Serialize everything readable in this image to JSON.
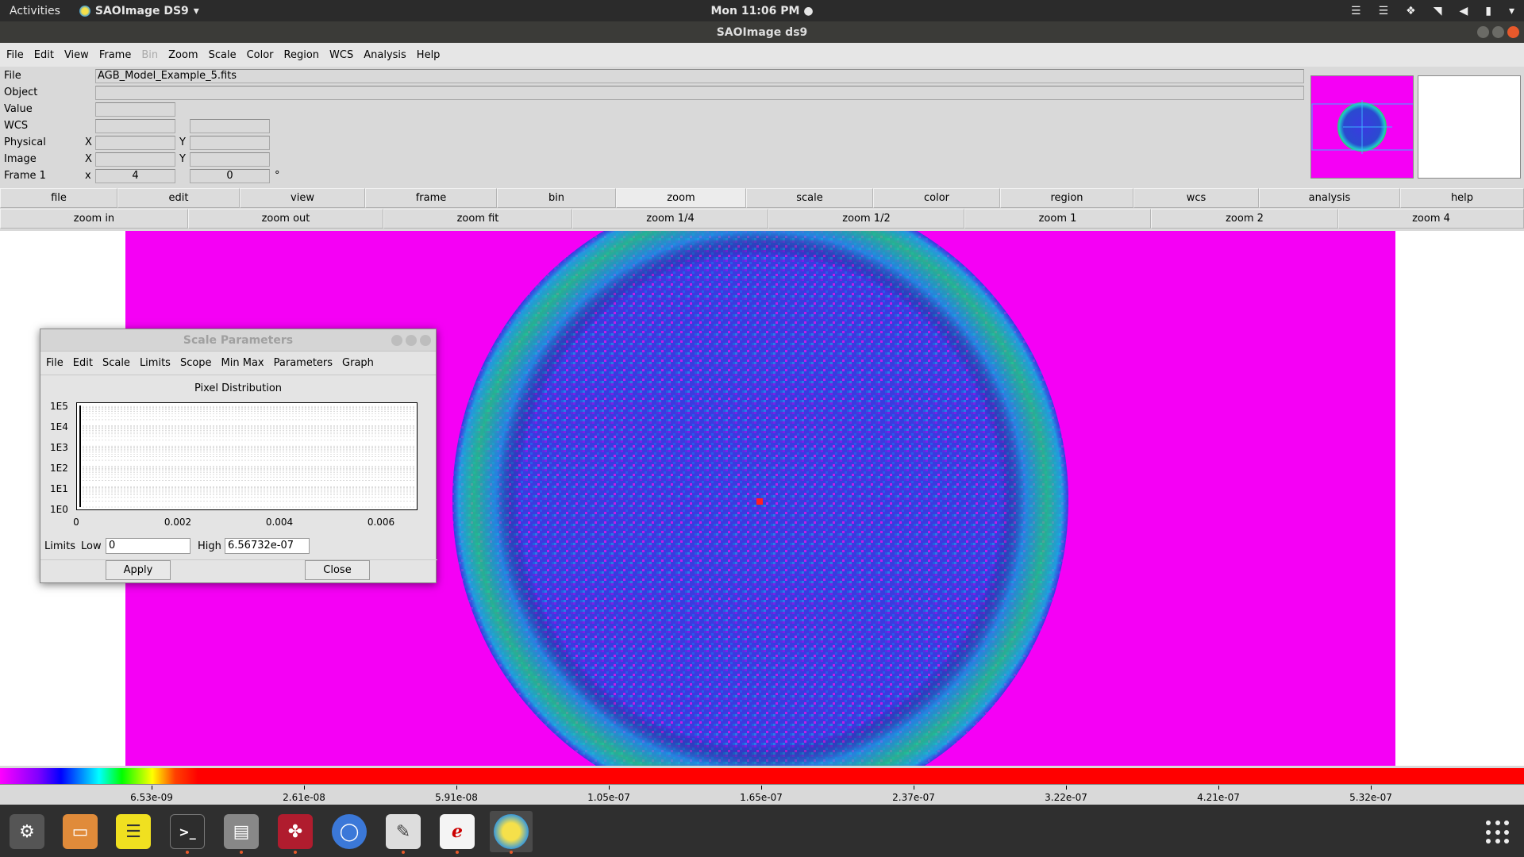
{
  "topbar": {
    "activities": "Activities",
    "app_name": "SAOImage DS9",
    "clock": "Mon 11:06 PM"
  },
  "window": {
    "title": "SAOImage ds9"
  },
  "menubar": [
    "File",
    "Edit",
    "View",
    "Frame",
    "Bin",
    "Zoom",
    "Scale",
    "Color",
    "Region",
    "WCS",
    "Analysis",
    "Help"
  ],
  "info": {
    "file_label": "File",
    "file_value": "AGB_Model_Example_5.fits",
    "object_label": "Object",
    "value_label": "Value",
    "wcs_label": "WCS",
    "physical_label": "Physical",
    "image_label": "Image",
    "frame_label": "Frame 1",
    "x_label": "X",
    "y_label": "Y",
    "frame_x_label": "x",
    "frame_x": "4",
    "frame_y": "0",
    "degree": "°"
  },
  "buttonbar": [
    "file",
    "edit",
    "view",
    "frame",
    "bin",
    "zoom",
    "scale",
    "color",
    "region",
    "wcs",
    "analysis",
    "help"
  ],
  "zoombar": [
    "zoom in",
    "zoom out",
    "zoom fit",
    "zoom 1/4",
    "zoom 1/2",
    "zoom 1",
    "zoom 2",
    "zoom 4"
  ],
  "colorbar": {
    "labels": [
      "6.53e-09",
      "2.61e-08",
      "5.91e-08",
      "1.05e-07",
      "1.65e-07",
      "2.37e-07",
      "3.22e-07",
      "4.21e-07",
      "5.32e-07"
    ]
  },
  "dialog": {
    "title": "Scale Parameters",
    "menu": [
      "File",
      "Edit",
      "Scale",
      "Limits",
      "Scope",
      "Min Max",
      "Parameters",
      "Graph"
    ],
    "heading": "Pixel Distribution",
    "limits_label": "Limits",
    "low_label": "Low",
    "low_value": "0",
    "high_label": "High",
    "high_value": "6.56732e-07",
    "apply": "Apply",
    "close": "Close"
  },
  "chart_data": {
    "type": "bar",
    "title": "Pixel Distribution",
    "xlabel": "",
    "ylabel": "",
    "y_scale": "log",
    "y_tick_labels": [
      "1E5",
      "1E4",
      "1E3",
      "1E2",
      "1E1",
      "1E0"
    ],
    "x_tick_labels": [
      "0",
      "0.002",
      "0.004",
      "0.006"
    ],
    "xlim": [
      0,
      0.0067
    ],
    "ylim": [
      1,
      100000
    ],
    "grid": true,
    "x": [
      0.0
    ],
    "values": [
      100000
    ]
  }
}
